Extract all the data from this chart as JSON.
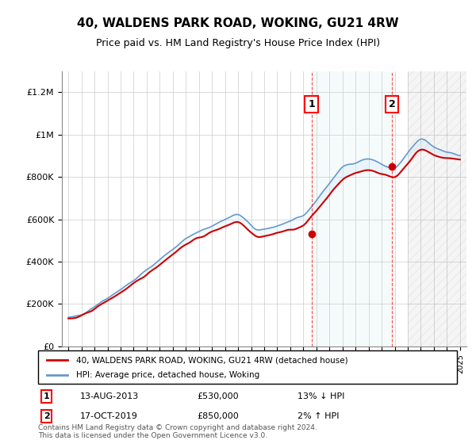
{
  "title": "40, WALDENS PARK ROAD, WOKING, GU21 4RW",
  "subtitle": "Price paid vs. HM Land Registry's House Price Index (HPI)",
  "ylabel_ticks": [
    "£0",
    "£200K",
    "£400K",
    "£600K",
    "£800K",
    "£1M",
    "£1.2M"
  ],
  "ytick_values": [
    0,
    200000,
    400000,
    600000,
    800000,
    1000000,
    1200000
  ],
  "ylim": [
    0,
    1300000
  ],
  "xlim_start": 1994.5,
  "xlim_end": 2025.5,
  "legend_line1": "40, WALDENS PARK ROAD, WOKING, GU21 4RW (detached house)",
  "legend_line2": "HPI: Average price, detached house, Woking",
  "line1_color": "#cc0000",
  "line2_color": "#6699cc",
  "fill_color": "#ddeeff",
  "annotation1_label": "1",
  "annotation1_date": "13-AUG-2013",
  "annotation1_price": "£530,000",
  "annotation1_hpi": "13% ↓ HPI",
  "annotation1_year": 2013.62,
  "annotation1_value": 530000,
  "annotation2_label": "2",
  "annotation2_date": "17-OCT-2019",
  "annotation2_price": "£850,000",
  "annotation2_hpi": "2% ↑ HPI",
  "annotation2_year": 2019.79,
  "annotation2_value": 850000,
  "footer": "Contains HM Land Registry data © Crown copyright and database right 2024.\nThis data is licensed under the Open Government Licence v3.0.",
  "hatch_region_start": 2021.0,
  "hatch_region_end": 2025.5
}
